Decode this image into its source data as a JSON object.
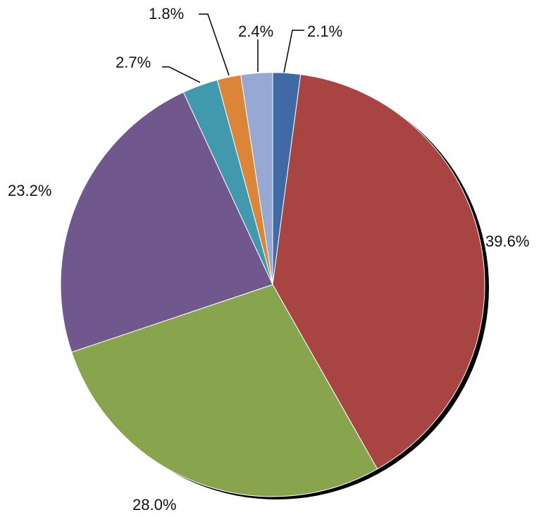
{
  "chart_data": {
    "type": "pie",
    "slices": [
      {
        "value": 2.1,
        "label": "2.1%",
        "color": "#3F6AA4"
      },
      {
        "value": 39.6,
        "label": "39.6%",
        "color": "#A84543"
      },
      {
        "value": 28.0,
        "label": "28.0%",
        "color": "#88A54E"
      },
      {
        "value": 23.2,
        "label": "23.2%",
        "color": "#70588E"
      },
      {
        "value": 2.7,
        "label": "2.7%",
        "color": "#4199AE"
      },
      {
        "value": 1.8,
        "label": "1.8%",
        "color": "#DB8538"
      },
      {
        "value": 2.4,
        "label": "2.4%",
        "color": "#95A9D2"
      }
    ],
    "start": "12 o'clock",
    "direction": "clockwise",
    "legend": "none"
  }
}
